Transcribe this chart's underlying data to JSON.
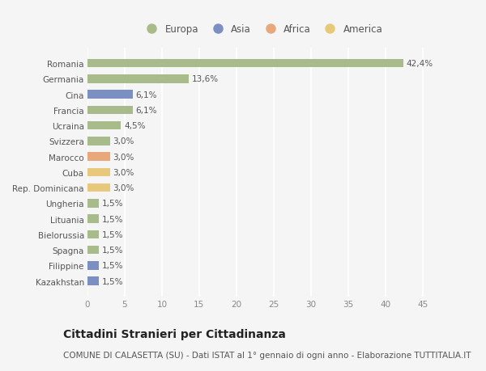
{
  "categories": [
    "Romania",
    "Germania",
    "Cina",
    "Francia",
    "Ucraina",
    "Svizzera",
    "Marocco",
    "Cuba",
    "Rep. Dominicana",
    "Ungheria",
    "Lituania",
    "Bielorussia",
    "Spagna",
    "Filippine",
    "Kazakhstan"
  ],
  "values": [
    42.4,
    13.6,
    6.1,
    6.1,
    4.5,
    3.0,
    3.0,
    3.0,
    3.0,
    1.5,
    1.5,
    1.5,
    1.5,
    1.5,
    1.5
  ],
  "labels": [
    "42,4%",
    "13,6%",
    "6,1%",
    "6,1%",
    "4,5%",
    "3,0%",
    "3,0%",
    "3,0%",
    "3,0%",
    "1,5%",
    "1,5%",
    "1,5%",
    "1,5%",
    "1,5%",
    "1,5%"
  ],
  "colors": [
    "#a8bb8a",
    "#a8bb8a",
    "#7b8fc2",
    "#a8bb8a",
    "#a8bb8a",
    "#a8bb8a",
    "#e8a87c",
    "#e8c97c",
    "#e8c97c",
    "#a8bb8a",
    "#a8bb8a",
    "#a8bb8a",
    "#a8bb8a",
    "#7b8fc2",
    "#7b8fc2"
  ],
  "legend_labels": [
    "Europa",
    "Asia",
    "Africa",
    "America"
  ],
  "legend_colors": [
    "#a8bb8a",
    "#7b8fc2",
    "#e8a87c",
    "#e8c97c"
  ],
  "title": "Cittadini Stranieri per Cittadinanza",
  "subtitle": "COMUNE DI CALASETTA (SU) - Dati ISTAT al 1° gennaio di ogni anno - Elaborazione TUTTITALIA.IT",
  "xlim": [
    0,
    47
  ],
  "xticks": [
    0,
    5,
    10,
    15,
    20,
    25,
    30,
    35,
    40,
    45
  ],
  "background_color": "#f5f5f5",
  "grid_color": "#ffffff",
  "bar_height": 0.55,
  "title_fontsize": 10,
  "subtitle_fontsize": 7.5,
  "label_fontsize": 7.5,
  "tick_fontsize": 7.5,
  "legend_fontsize": 8.5
}
